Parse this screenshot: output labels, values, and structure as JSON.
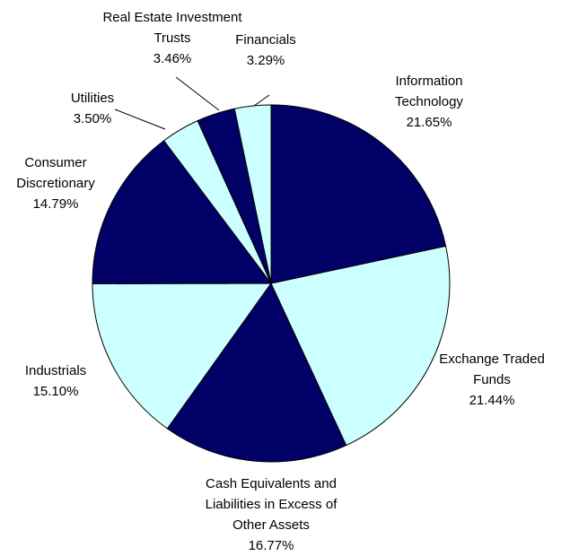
{
  "chart_data": {
    "type": "pie",
    "categories": [
      "Information Technology",
      "Exchange Traded Funds",
      "Cash Equivalents and Liabilities in Excess of Other Assets",
      "Industrials",
      "Consumer Discretionary",
      "Utilities",
      "Real Estate Investment Trusts",
      "Financials"
    ],
    "values": [
      21.65,
      21.44,
      16.77,
      15.1,
      14.79,
      3.5,
      3.46,
      3.29
    ],
    "value_labels": [
      "21.65%",
      "21.44%",
      "16.77%",
      "15.10%",
      "14.79%",
      "3.50%",
      "3.46%",
      "3.29%"
    ],
    "colors": [
      "#000066",
      "#ccffff",
      "#000066",
      "#ccffff",
      "#000066",
      "#ccffff",
      "#000066",
      "#ccffff"
    ]
  }
}
